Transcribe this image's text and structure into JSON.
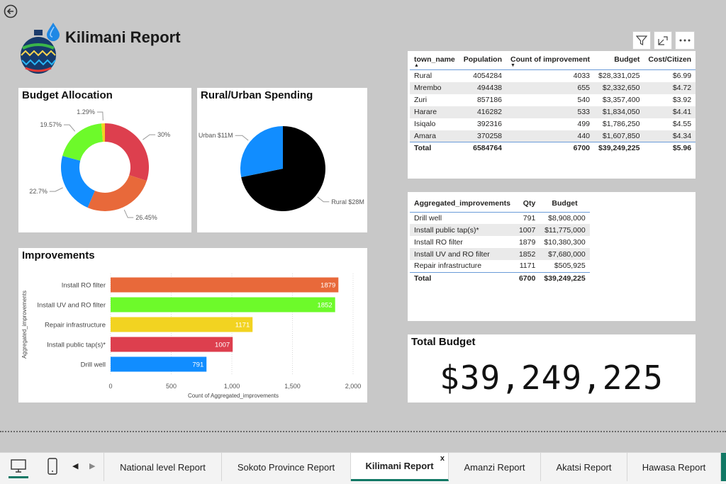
{
  "header": {
    "title": "Kilimani Report"
  },
  "budget_allocation": {
    "title": "Budget Allocation",
    "chart_data": {
      "type": "pie",
      "donut": true,
      "slices": [
        {
          "label": "30%",
          "value": 30,
          "color": "#dd3f4e"
        },
        {
          "label": "26.45%",
          "value": 26.45,
          "color": "#e8693a"
        },
        {
          "label": "22.7%",
          "value": 22.7,
          "color": "#118dff"
        },
        {
          "label": "19.57%",
          "value": 19.57,
          "color": "#6dfa2a"
        },
        {
          "label": "1.29%",
          "value": 1.29,
          "color": "#f2d321"
        }
      ]
    }
  },
  "rural_urban": {
    "title": "Rural/Urban Spending",
    "chart_data": {
      "type": "pie",
      "slices": [
        {
          "label": "Rural $28M",
          "value": 28,
          "color": "#000000"
        },
        {
          "label": "Urban $11M",
          "value": 11,
          "color": "#118dff"
        }
      ]
    }
  },
  "improvements": {
    "title": "Improvements",
    "chart_data": {
      "type": "bar",
      "orientation": "horizontal",
      "xlabel": "Count of Aggregated_improvements",
      "ylabel": "Aggregated_improvements",
      "xlim": [
        0,
        2000
      ],
      "xticks": [
        "0",
        "500",
        "1,000",
        "1,500",
        "2,000"
      ],
      "categories": [
        "Install RO filter",
        "Install UV and RO filter",
        "Repair infrastructure",
        "Install public tap(s)*",
        "Drill well"
      ],
      "values": [
        1879,
        1852,
        1171,
        1007,
        791
      ],
      "value_labels": [
        "1879",
        "1852",
        "1171",
        "1007",
        "791"
      ],
      "colors": [
        "#e8693a",
        "#6dfa2a",
        "#f2d321",
        "#dd3f4e",
        "#118dff"
      ]
    }
  },
  "town_table": {
    "headers": [
      "town_name",
      "Population",
      "Count of improvement",
      "Budget",
      "Cost/Citizen"
    ],
    "rows": [
      [
        "Rural",
        "4054284",
        "4033",
        "$28,331,025",
        "$6.99"
      ],
      [
        "Mrembo",
        "494438",
        "655",
        "$2,332,650",
        "$4.72"
      ],
      [
        "Zuri",
        "857186",
        "540",
        "$3,357,400",
        "$3.92"
      ],
      [
        "Harare",
        "416282",
        "533",
        "$1,834,050",
        "$4.41"
      ],
      [
        "Isiqalo",
        "392316",
        "499",
        "$1,786,250",
        "$4.55"
      ],
      [
        "Amara",
        "370258",
        "440",
        "$1,607,850",
        "$4.34"
      ]
    ],
    "total": [
      "Total",
      "6584764",
      "6700",
      "$39,249,225",
      "$5.96"
    ]
  },
  "agg_table": {
    "headers": [
      "Aggregated_improvements",
      "Qty",
      "Budget"
    ],
    "rows": [
      [
        "Drill well",
        "791",
        "$8,908,000"
      ],
      [
        "Install public tap(s)*",
        "1007",
        "$11,775,000"
      ],
      [
        "Install RO filter",
        "1879",
        "$10,380,300"
      ],
      [
        "Install UV and RO filter",
        "1852",
        "$7,680,000"
      ],
      [
        "Repair infrastructure",
        "1171",
        "$505,925"
      ]
    ],
    "total": [
      "Total",
      "6700",
      "$39,249,225"
    ]
  },
  "total_budget": {
    "title": "Total Budget",
    "value": "$39,249,225"
  },
  "tabs": [
    {
      "label": "National level Report"
    },
    {
      "label": "Sokoto Province Report"
    },
    {
      "label": "Kilimani Report",
      "active": true
    },
    {
      "label": "Amanzi Report"
    },
    {
      "label": "Akatsi Report"
    },
    {
      "label": "Hawasa Report"
    }
  ]
}
